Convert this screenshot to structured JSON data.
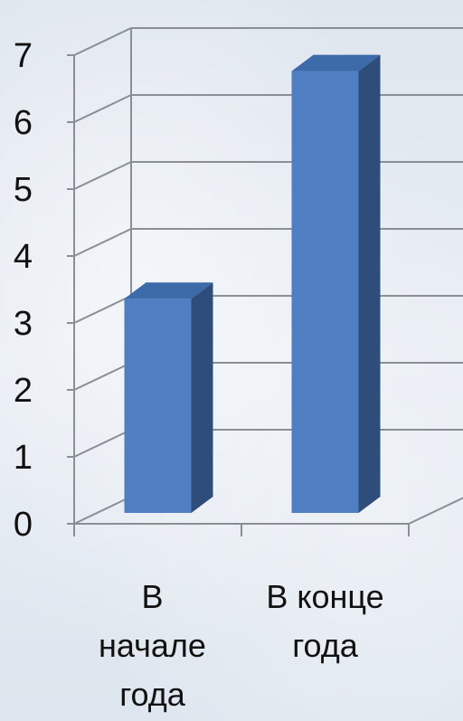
{
  "chart_data": {
    "type": "bar",
    "categories": [
      [
        "В",
        "начале",
        "года"
      ],
      [
        "В конце",
        "года"
      ]
    ],
    "values": [
      3.2,
      6.6
    ],
    "ylim": [
      0,
      7
    ],
    "yticks": [
      "0",
      "1",
      "2",
      "3",
      "4",
      "5",
      "6",
      "7"
    ],
    "grid": true,
    "colors": {
      "front": "#4f7ec2",
      "side": "#2e4d7a",
      "top": "#3d6aa8",
      "grid": "#8a8f96",
      "axis": "#8a8f96"
    }
  }
}
